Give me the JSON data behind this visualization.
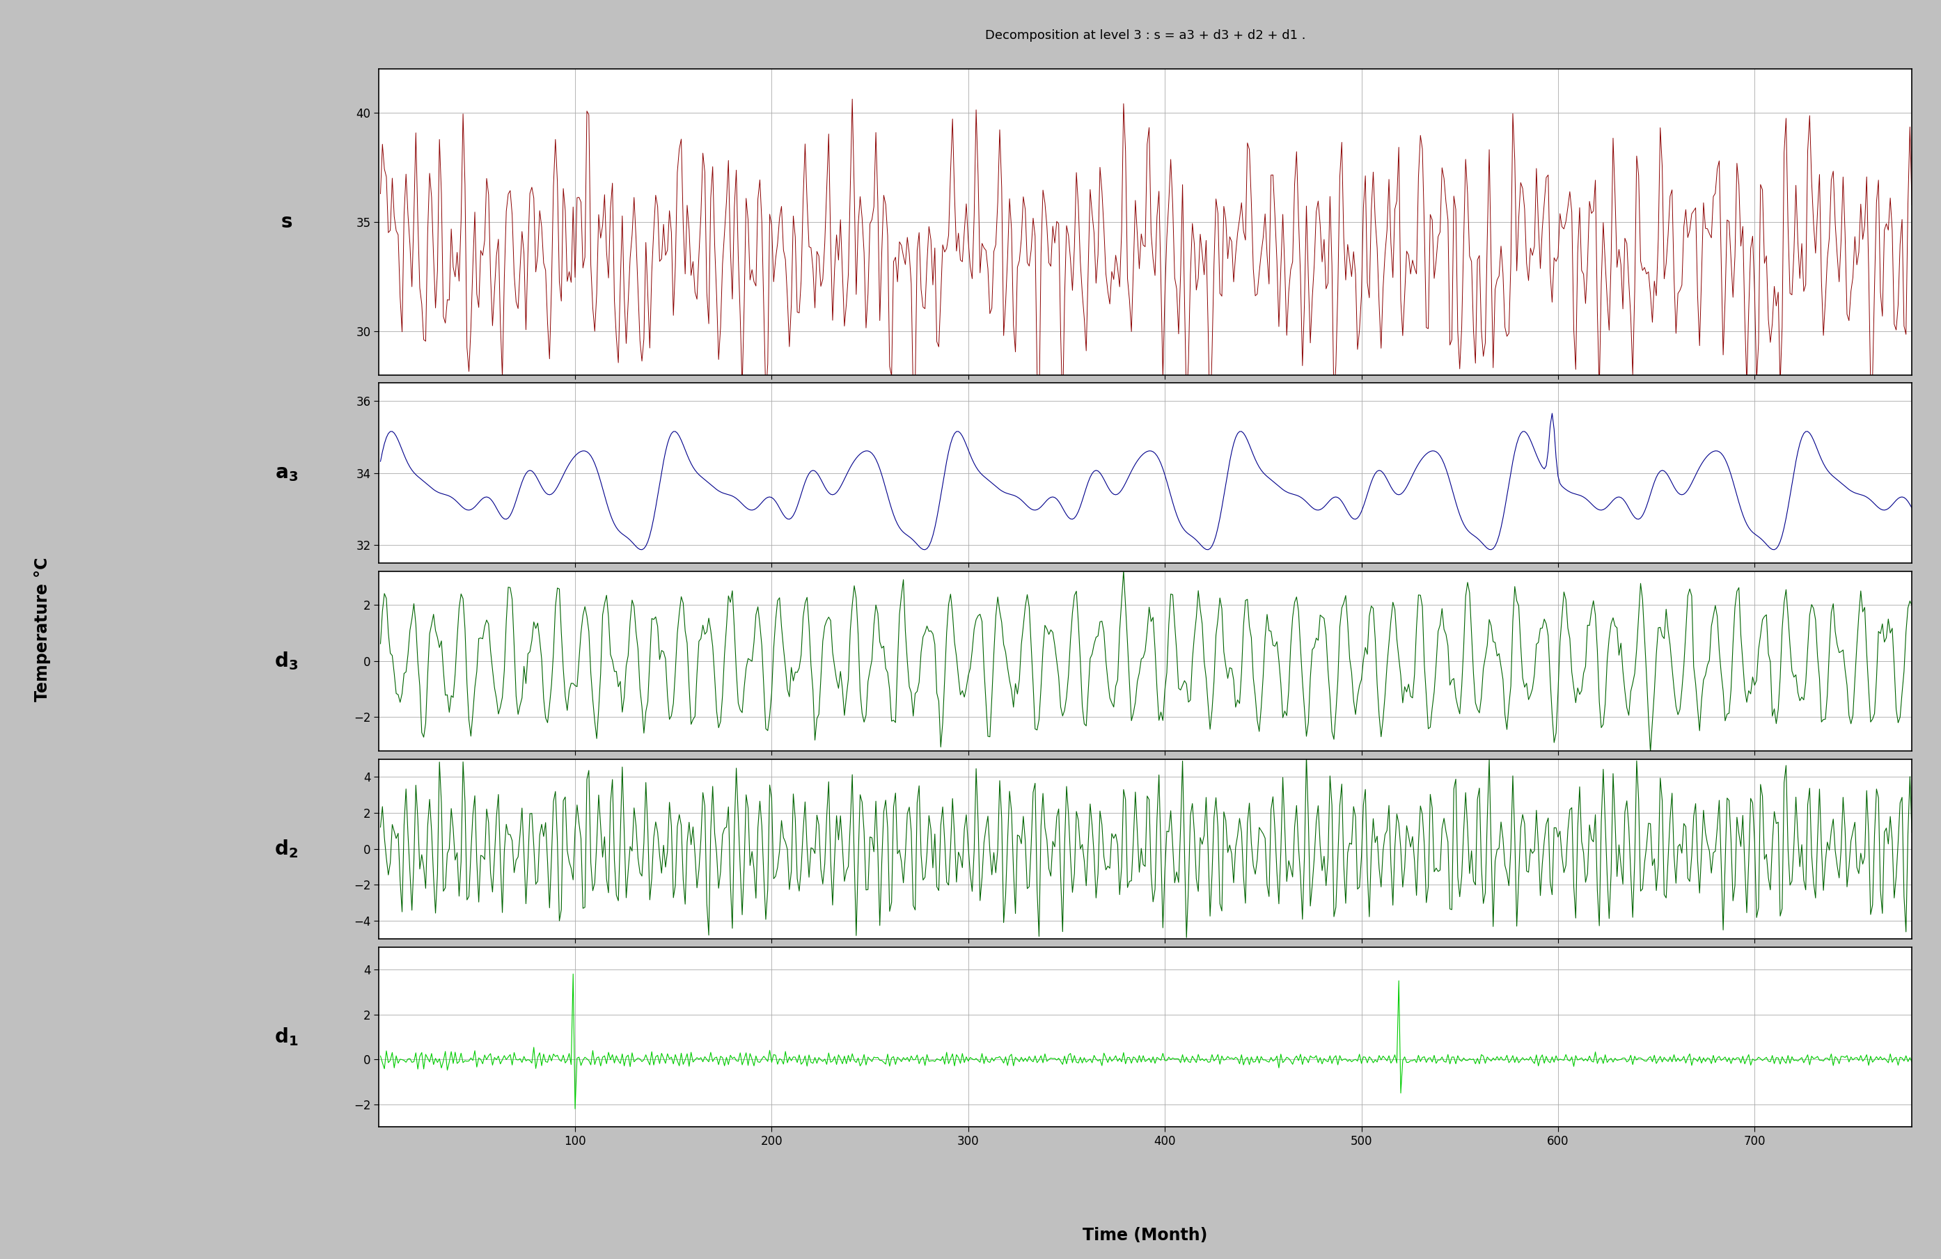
{
  "title": "Decomposition at level 3 : s = a3 + d3 + d2 + d1 .",
  "xlabel": "Time (Month)",
  "ylabel": "Temperature °C",
  "background_color": "#c0c0c0",
  "plot_bg_color": "#ffffff",
  "n_points": 780,
  "subplot_colors": [
    "#8b0000",
    "#00008b",
    "#006400",
    "#006400",
    "#00cc00"
  ],
  "s_ylim": [
    28,
    42
  ],
  "s_yticks": [
    30,
    35,
    40
  ],
  "a3_ylim": [
    31.5,
    36.5
  ],
  "a3_yticks": [
    32,
    34,
    36
  ],
  "d3_ylim": [
    -3.2,
    3.2
  ],
  "d3_yticks": [
    -2,
    0,
    2
  ],
  "d2_ylim": [
    -5.0,
    5.0
  ],
  "d2_yticks": [
    -4,
    -2,
    0,
    2,
    4
  ],
  "d1_ylim": [
    -3.0,
    5.0
  ],
  "d1_yticks": [
    -2,
    0,
    2,
    4
  ],
  "xlim": [
    0,
    780
  ],
  "xticks": [
    100,
    200,
    300,
    400,
    500,
    600,
    700
  ],
  "title_fontsize": 13,
  "label_fontsize": 17,
  "tick_fontsize": 12,
  "subplot_label_fontsize": 20
}
